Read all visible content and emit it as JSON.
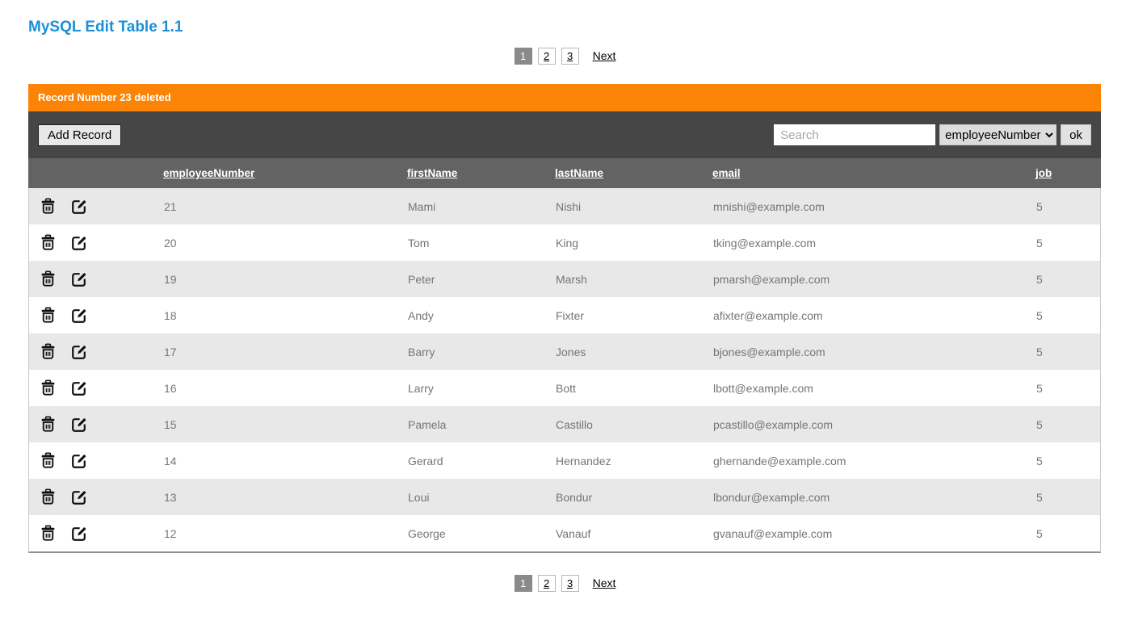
{
  "page": {
    "title": "MySQL Edit Table 1.1"
  },
  "pagination": {
    "pages": [
      "1",
      "2",
      "3"
    ],
    "active": "1",
    "next_label": "Next"
  },
  "banner": {
    "message": "Record Number 23 deleted",
    "color": "#fb8305"
  },
  "toolbar": {
    "add_button": "Add Record",
    "search_placeholder": "Search",
    "search_value": "",
    "filter_selected": "employeeNumber",
    "ok_button": "ok"
  },
  "table": {
    "columns": [
      "employeeNumber",
      "firstName",
      "lastName",
      "email",
      "job"
    ],
    "row_icons": [
      "delete-icon",
      "edit-icon"
    ],
    "rows": [
      {
        "employeeNumber": "21",
        "firstName": "Mami",
        "lastName": "Nishi",
        "email": "mnishi@example.com",
        "job": "5"
      },
      {
        "employeeNumber": "20",
        "firstName": "Tom",
        "lastName": "King",
        "email": "tking@example.com",
        "job": "5"
      },
      {
        "employeeNumber": "19",
        "firstName": "Peter",
        "lastName": "Marsh",
        "email": "pmarsh@example.com",
        "job": "5"
      },
      {
        "employeeNumber": "18",
        "firstName": "Andy",
        "lastName": "Fixter",
        "email": "afixter@example.com",
        "job": "5"
      },
      {
        "employeeNumber": "17",
        "firstName": "Barry",
        "lastName": "Jones",
        "email": "bjones@example.com",
        "job": "5"
      },
      {
        "employeeNumber": "16",
        "firstName": "Larry",
        "lastName": "Bott",
        "email": "lbott@example.com",
        "job": "5"
      },
      {
        "employeeNumber": "15",
        "firstName": "Pamela",
        "lastName": "Castillo",
        "email": "pcastillo@example.com",
        "job": "5"
      },
      {
        "employeeNumber": "14",
        "firstName": "Gerard",
        "lastName": "Hernandez",
        "email": "ghernande@example.com",
        "job": "5"
      },
      {
        "employeeNumber": "13",
        "firstName": "Loui",
        "lastName": "Bondur",
        "email": "lbondur@example.com",
        "job": "5"
      },
      {
        "employeeNumber": "12",
        "firstName": "George",
        "lastName": "Vanauf",
        "email": "gvanauf@example.com",
        "job": "5"
      }
    ]
  },
  "colors": {
    "title_blue": "#1b90d5",
    "banner_orange": "#fb8305",
    "toolbar_gray": "#464646",
    "header_gray": "#636363",
    "row_alt_gray": "#e8e8e8",
    "active_page_gray": "#8a8a8a"
  }
}
